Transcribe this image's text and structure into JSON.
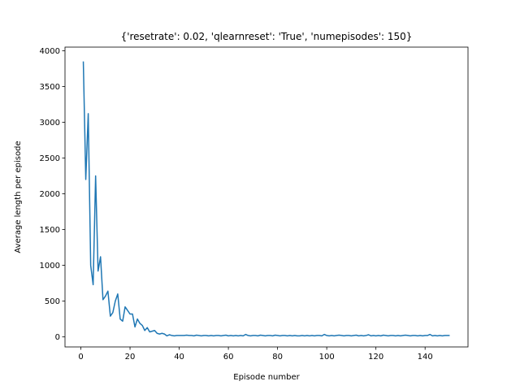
{
  "chart_data": {
    "type": "line",
    "title": "{'resetrate': 0.02, 'qlearnreset': 'True', 'numepisodes': 150}",
    "xlabel": "Episode number",
    "ylabel": "Average length per episode",
    "xlim": [
      -6.45,
      157.45
    ],
    "ylim": [
      -140,
      4050
    ],
    "xticks": [
      0,
      20,
      40,
      60,
      80,
      100,
      120,
      140
    ],
    "yticks": [
      0,
      500,
      1000,
      1500,
      2000,
      2500,
      3000,
      3500,
      4000
    ],
    "grid": false,
    "color": "#1f77b4",
    "series": [
      {
        "x": [
          1,
          2,
          3,
          4,
          5,
          6,
          7,
          8,
          9,
          10,
          11,
          12,
          13,
          14,
          15,
          16,
          17,
          18,
          19,
          20,
          21,
          22,
          23,
          24,
          25,
          26,
          27,
          28,
          29,
          30,
          31,
          32,
          33,
          34,
          35,
          36,
          37,
          38,
          39,
          40,
          41,
          42,
          43,
          44,
          45,
          46,
          47,
          48,
          49,
          50,
          51,
          52,
          53,
          54,
          55,
          56,
          57,
          58,
          59,
          60,
          61,
          62,
          63,
          64,
          65,
          66,
          67,
          68,
          69,
          70,
          71,
          72,
          73,
          74,
          75,
          76,
          77,
          78,
          79,
          80,
          81,
          82,
          83,
          84,
          85,
          86,
          87,
          88,
          89,
          90,
          91,
          92,
          93,
          94,
          95,
          96,
          97,
          98,
          99,
          100,
          101,
          102,
          103,
          104,
          105,
          106,
          107,
          108,
          109,
          110,
          111,
          112,
          113,
          114,
          115,
          116,
          117,
          118,
          119,
          120,
          121,
          122,
          123,
          124,
          125,
          126,
          127,
          128,
          129,
          130,
          131,
          132,
          133,
          134,
          135,
          136,
          137,
          138,
          139,
          140,
          141,
          142,
          143,
          144,
          145,
          146,
          147,
          148,
          149,
          150
        ],
        "y": [
          3850,
          2200,
          3120,
          1000,
          730,
          2250,
          920,
          1120,
          520,
          570,
          640,
          290,
          340,
          500,
          600,
          250,
          220,
          420,
          370,
          320,
          320,
          140,
          250,
          190,
          160,
          90,
          130,
          70,
          80,
          90,
          50,
          40,
          50,
          40,
          15,
          30,
          20,
          15,
          20,
          20,
          20,
          20,
          25,
          20,
          20,
          15,
          25,
          20,
          15,
          20,
          20,
          15,
          20,
          15,
          20,
          20,
          15,
          20,
          25,
          15,
          20,
          15,
          20,
          15,
          20,
          15,
          35,
          20,
          15,
          20,
          20,
          15,
          25,
          20,
          15,
          20,
          20,
          15,
          25,
          20,
          15,
          20,
          20,
          15,
          20,
          15,
          20,
          15,
          15,
          20,
          15,
          20,
          15,
          20,
          15,
          20,
          20,
          15,
          35,
          20,
          15,
          20,
          15,
          20,
          25,
          20,
          15,
          20,
          20,
          15,
          20,
          25,
          15,
          20,
          15,
          20,
          30,
          15,
          20,
          15,
          20,
          15,
          25,
          20,
          15,
          20,
          20,
          15,
          20,
          15,
          20,
          25,
          20,
          15,
          20,
          20,
          15,
          20,
          15,
          20,
          20,
          35,
          15,
          20,
          15,
          20,
          15,
          20,
          20,
          20
        ]
      }
    ]
  }
}
